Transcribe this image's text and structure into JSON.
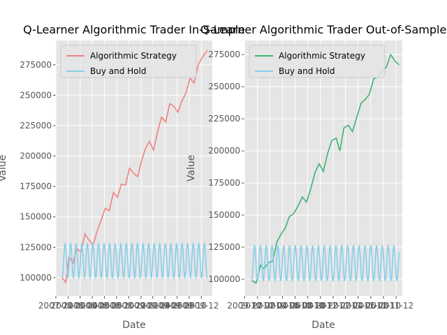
{
  "chart_data": [
    {
      "type": "line",
      "title": "Q-Learner Algorithmic Trader In-Sample",
      "xlabel": "Date",
      "ylabel": "Value",
      "xlim": [
        "2007-12-01",
        "2010-01-25"
      ],
      "ylim": [
        85000,
        295000
      ],
      "yticks": [
        100000,
        125000,
        150000,
        175000,
        200000,
        225000,
        250000,
        275000
      ],
      "ytick_labels": [
        "100000",
        "125000",
        "150000",
        "175000",
        "200000",
        "225000",
        "250000",
        "275000"
      ],
      "xticks": [
        "2007-12-01",
        "2008-02-01",
        "2008-04-01",
        "2008-06-01",
        "2008-08-01",
        "2008-10-01",
        "2008-12-01",
        "2009-02-01",
        "2009-04-01",
        "2009-06-01",
        "2009-08-01",
        "2009-10-01",
        "2009-12-01"
      ],
      "xtick_labels": [
        "2007-12",
        "2008-02",
        "2008-04",
        "2008-06",
        "2008-08",
        "2008-10",
        "2008-12",
        "2009-02",
        "2009-04",
        "2009-06",
        "2009-08",
        "2009-10",
        "2009-12"
      ],
      "grid": true,
      "legend": "upper-left",
      "series": [
        {
          "name": "Algorithmic Strategy",
          "color": "#f08080",
          "x": [
            "2008-01-02",
            "2008-01-20",
            "2008-02-05",
            "2008-02-25",
            "2008-03-15",
            "2008-04-05",
            "2008-04-25",
            "2008-05-15",
            "2008-06-05",
            "2008-06-25",
            "2008-07-15",
            "2008-08-05",
            "2008-08-25",
            "2008-09-15",
            "2008-10-05",
            "2008-10-25",
            "2008-11-15",
            "2008-12-05",
            "2008-12-25",
            "2009-01-15",
            "2009-02-05",
            "2009-02-25",
            "2009-03-15",
            "2009-04-05",
            "2009-04-25",
            "2009-05-15",
            "2009-06-05",
            "2009-06-25",
            "2009-07-15",
            "2009-08-05",
            "2009-08-25",
            "2009-09-15",
            "2009-10-05",
            "2009-10-25",
            "2009-11-15",
            "2009-12-05",
            "2009-12-31"
          ],
          "y": [
            100000,
            96000,
            117000,
            112000,
            124000,
            121000,
            136000,
            131000,
            127000,
            138000,
            147000,
            157000,
            155000,
            170000,
            166000,
            177000,
            176000,
            190000,
            186000,
            183000,
            197000,
            207000,
            212000,
            205000,
            220000,
            232000,
            228000,
            243000,
            241000,
            236000,
            245000,
            252000,
            264000,
            260000,
            275000,
            281000,
            287000
          ]
        },
        {
          "name": "Buy and Hold",
          "color": "#87ceeb",
          "periods_days": 28,
          "min": 100000,
          "max": 128000
        }
      ]
    },
    {
      "type": "line",
      "title": "Q-Learner Algorithmic Trader Out-of-Sample",
      "xlabel": "Date",
      "ylabel": "Value",
      "xlim": [
        "2009-11-30",
        "2011-12-31"
      ],
      "ylim": [
        87000,
        286000
      ],
      "yticks": [
        100000,
        125000,
        150000,
        175000,
        200000,
        225000,
        250000,
        275000
      ],
      "ytick_labels": [
        "100000",
        "125000",
        "150000",
        "175000",
        "200000",
        "225000",
        "250000",
        "275000"
      ],
      "xticks": [
        "2009-12-01",
        "2010-02-01",
        "2010-04-01",
        "2010-06-01",
        "2010-08-01",
        "2010-10-01",
        "2010-12-01",
        "2011-02-01",
        "2011-04-01",
        "2011-06-01",
        "2011-08-01",
        "2011-10-01",
        "2011-12-01"
      ],
      "xtick_labels": [
        "2009-12",
        "2010-02",
        "2010-04",
        "2010-06",
        "2010-08",
        "2010-10",
        "2010-12",
        "2011-02",
        "2011-04",
        "2011-06",
        "2011-08",
        "2011-10",
        "2011-12"
      ],
      "grid": true,
      "legend": "upper-left",
      "series": [
        {
          "name": "Algorithmic Strategy",
          "color": "#3cb371",
          "x": [
            "2010-01-04",
            "2010-01-25",
            "2010-02-15",
            "2010-03-05",
            "2010-03-25",
            "2010-04-15",
            "2010-05-05",
            "2010-05-25",
            "2010-06-15",
            "2010-07-05",
            "2010-07-25",
            "2010-08-15",
            "2010-09-05",
            "2010-09-25",
            "2010-10-15",
            "2010-11-05",
            "2010-11-25",
            "2010-12-15",
            "2011-01-05",
            "2011-01-25",
            "2011-02-15",
            "2011-03-05",
            "2011-03-25",
            "2011-04-15",
            "2011-05-05",
            "2011-05-25",
            "2011-06-15",
            "2011-07-05",
            "2011-07-25",
            "2011-08-15",
            "2011-09-05",
            "2011-09-25",
            "2011-10-15",
            "2011-11-05",
            "2011-11-25",
            "2011-12-15"
          ],
          "y": [
            99000,
            97000,
            111000,
            108000,
            113000,
            114000,
            129000,
            135000,
            140000,
            149000,
            151000,
            157000,
            164000,
            160000,
            170000,
            183000,
            190000,
            184000,
            198000,
            208000,
            210000,
            200000,
            218000,
            220000,
            215000,
            226000,
            237000,
            240000,
            244000,
            256000,
            258000,
            262000,
            265000,
            275000,
            270000,
            267000
          ]
        },
        {
          "name": "Buy and Hold",
          "color": "#87ceeb",
          "periods_days": 28,
          "min": 99000,
          "max": 126000
        }
      ]
    }
  ]
}
